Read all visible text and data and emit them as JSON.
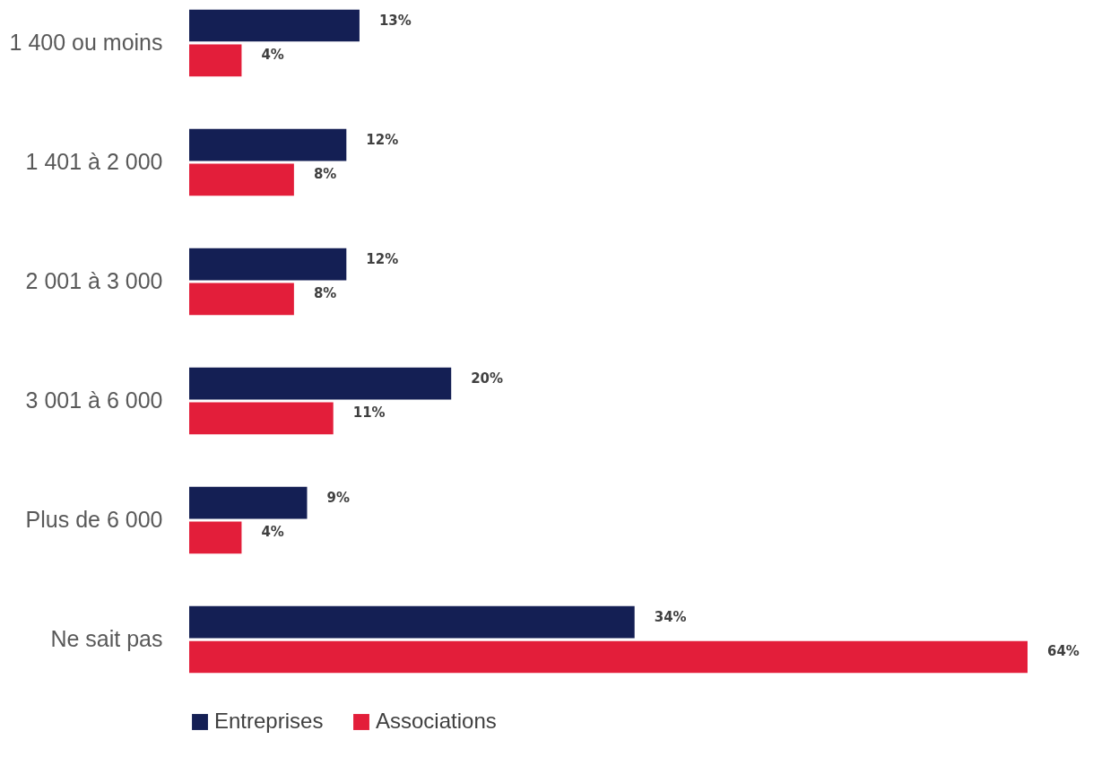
{
  "chart_data": {
    "type": "bar",
    "orientation": "horizontal",
    "categories": [
      "1 400 ou moins",
      "1 401 à 2 000",
      "2 001 à 3 000",
      "3 001 à 6 000",
      "Plus de 6 000",
      "Ne sait pas"
    ],
    "series": [
      {
        "name": "Entreprises",
        "color": "#141f54",
        "values": [
          13,
          12,
          12,
          20,
          9,
          34
        ],
        "value_labels": [
          "13%",
          "12%",
          "12%",
          "20%",
          "9%",
          "34%"
        ]
      },
      {
        "name": "Associations",
        "color": "#e31e3a",
        "values": [
          4,
          8,
          8,
          11,
          4,
          64
        ],
        "value_labels": [
          "4%",
          "8%",
          "8%",
          "11%",
          "4%",
          "64%"
        ]
      }
    ],
    "legend": "bottom"
  }
}
